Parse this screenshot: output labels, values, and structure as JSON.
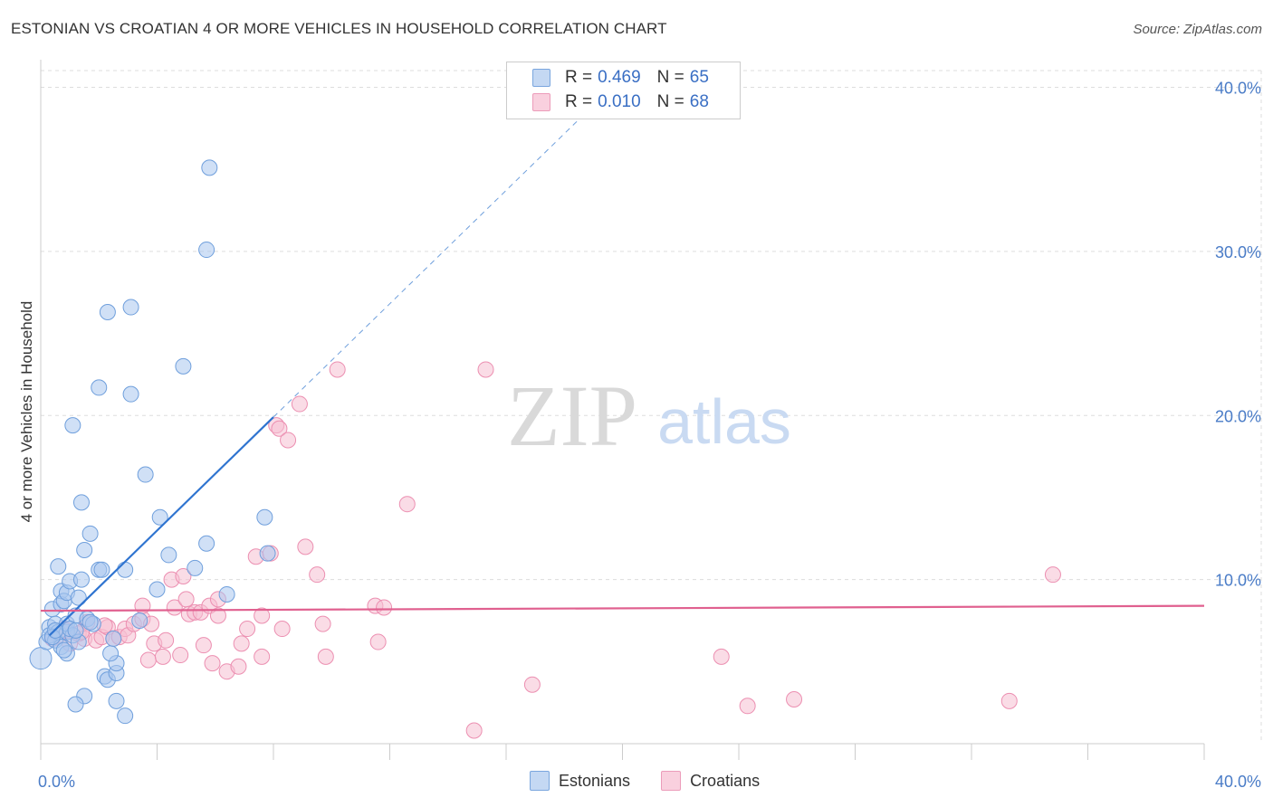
{
  "title": "ESTONIAN VS CROATIAN 4 OR MORE VEHICLES IN HOUSEHOLD CORRELATION CHART",
  "source": "Source: ZipAtlas.com",
  "watermark": {
    "zip": "ZIP",
    "atlas": "atlas"
  },
  "colors": {
    "estonian_fill": "#a9c6ee",
    "estonian_stroke": "#6f9fdc",
    "estonian_line": "#2f74d0",
    "croatian_fill": "#f6bfd2",
    "croatian_stroke": "#ec8fb1",
    "croatian_line": "#e0608f",
    "axis_label": "#4a7cc7",
    "grid": "#dddddd"
  },
  "legend": {
    "r_label": "R =",
    "n_label": "N =",
    "estonians": {
      "r": "0.469",
      "n": "65"
    },
    "croatians": {
      "r": "0.010",
      "n": "68"
    }
  },
  "bottom_legend": {
    "estonians": "Estonians",
    "croatians": "Croatians"
  },
  "chart_data": {
    "type": "scatter",
    "title": "ESTONIAN VS CROATIAN 4 OR MORE VEHICLES IN HOUSEHOLD CORRELATION CHART",
    "xlabel": "",
    "ylabel": "4 or more Vehicles in Household",
    "xlim": [
      0,
      40
    ],
    "ylim": [
      0,
      40
    ],
    "x_tick_labels": [
      "0.0%",
      "40.0%"
    ],
    "y_tick_labels": [
      "10.0%",
      "20.0%",
      "30.0%",
      "40.0%"
    ],
    "y_ticks": [
      10,
      20,
      30,
      40
    ],
    "series": [
      {
        "name": "Estonians",
        "r": 0.469,
        "n": 65,
        "trend": {
          "x0": 0.3,
          "y0": 6.6,
          "x1": 8.0,
          "y1": 19.9,
          "dash_to_x": 19.2
        },
        "points": [
          [
            0.0,
            5.2
          ],
          [
            0.2,
            6.2
          ],
          [
            0.3,
            7.1
          ],
          [
            0.3,
            6.6
          ],
          [
            0.4,
            8.2
          ],
          [
            0.5,
            6.3
          ],
          [
            0.5,
            7.3
          ],
          [
            0.6,
            6.8
          ],
          [
            0.7,
            5.9
          ],
          [
            0.6,
            10.8
          ],
          [
            0.7,
            8.5
          ],
          [
            0.7,
            9.3
          ],
          [
            0.8,
            8.7
          ],
          [
            0.9,
            6.8
          ],
          [
            0.9,
            9.2
          ],
          [
            0.9,
            7.3
          ],
          [
            0.9,
            5.5
          ],
          [
            1.0,
            9.9
          ],
          [
            1.1,
            6.6
          ],
          [
            1.2,
            7.8
          ],
          [
            1.3,
            6.2
          ],
          [
            1.3,
            8.9
          ],
          [
            1.4,
            10.0
          ],
          [
            1.5,
            11.8
          ],
          [
            1.6,
            7.6
          ],
          [
            1.7,
            12.8
          ],
          [
            1.5,
            2.9
          ],
          [
            1.2,
            2.4
          ],
          [
            1.1,
            19.4
          ],
          [
            1.4,
            14.7
          ],
          [
            2.0,
            21.7
          ],
          [
            2.3,
            26.3
          ],
          [
            3.1,
            26.6
          ],
          [
            3.1,
            21.3
          ],
          [
            3.6,
            16.4
          ],
          [
            4.1,
            13.8
          ],
          [
            4.4,
            11.5
          ],
          [
            4.9,
            23.0
          ],
          [
            5.3,
            10.7
          ],
          [
            5.7,
            12.2
          ],
          [
            5.7,
            30.1
          ],
          [
            5.8,
            35.1
          ],
          [
            6.4,
            9.1
          ],
          [
            7.7,
            13.8
          ],
          [
            7.8,
            11.6
          ],
          [
            2.0,
            10.6
          ],
          [
            2.9,
            10.6
          ],
          [
            2.1,
            10.6
          ],
          [
            2.2,
            4.1
          ],
          [
            2.3,
            3.9
          ],
          [
            2.6,
            4.3
          ],
          [
            2.6,
            4.9
          ],
          [
            2.6,
            2.6
          ],
          [
            2.9,
            1.7
          ],
          [
            4.0,
            9.4
          ],
          [
            1.8,
            7.3
          ],
          [
            1.0,
            7.0
          ],
          [
            1.2,
            6.9
          ],
          [
            0.4,
            6.5
          ],
          [
            0.5,
            6.9
          ],
          [
            1.7,
            7.4
          ],
          [
            2.4,
            5.5
          ],
          [
            2.5,
            6.4
          ],
          [
            3.4,
            7.5
          ],
          [
            0.8,
            5.7
          ]
        ]
      },
      {
        "name": "Croatians",
        "r": 0.01,
        "n": 68,
        "trend": {
          "x0": 0.0,
          "y0": 8.1,
          "x1": 40.0,
          "y1": 8.4
        },
        "points": [
          [
            0.4,
            6.4
          ],
          [
            0.6,
            6.6
          ],
          [
            0.8,
            7.0
          ],
          [
            1.0,
            6.1
          ],
          [
            1.3,
            6.7
          ],
          [
            1.5,
            6.4
          ],
          [
            1.6,
            7.4
          ],
          [
            1.9,
            6.3
          ],
          [
            2.1,
            6.5
          ],
          [
            2.3,
            7.1
          ],
          [
            2.5,
            6.4
          ],
          [
            2.7,
            6.5
          ],
          [
            2.9,
            7.0
          ],
          [
            3.0,
            6.6
          ],
          [
            3.2,
            7.3
          ],
          [
            3.5,
            7.6
          ],
          [
            3.5,
            8.4
          ],
          [
            3.7,
            5.1
          ],
          [
            3.8,
            7.3
          ],
          [
            3.9,
            6.1
          ],
          [
            4.2,
            5.3
          ],
          [
            4.3,
            6.3
          ],
          [
            4.5,
            10.0
          ],
          [
            4.6,
            8.3
          ],
          [
            4.8,
            5.4
          ],
          [
            4.9,
            10.2
          ],
          [
            5.0,
            8.8
          ],
          [
            5.1,
            7.9
          ],
          [
            5.3,
            8.0
          ],
          [
            5.5,
            8.0
          ],
          [
            5.6,
            6.0
          ],
          [
            5.8,
            8.4
          ],
          [
            5.9,
            4.9
          ],
          [
            6.1,
            7.8
          ],
          [
            6.1,
            8.8
          ],
          [
            6.4,
            4.4
          ],
          [
            6.8,
            4.7
          ],
          [
            6.9,
            6.1
          ],
          [
            7.1,
            7.0
          ],
          [
            7.4,
            11.4
          ],
          [
            7.6,
            5.3
          ],
          [
            7.6,
            7.8
          ],
          [
            7.9,
            11.6
          ],
          [
            8.1,
            19.4
          ],
          [
            8.2,
            19.2
          ],
          [
            8.3,
            7.0
          ],
          [
            8.5,
            18.5
          ],
          [
            8.9,
            20.7
          ],
          [
            9.1,
            12.0
          ],
          [
            9.5,
            10.3
          ],
          [
            9.8,
            5.3
          ],
          [
            9.7,
            7.3
          ],
          [
            10.2,
            22.8
          ],
          [
            11.5,
            8.4
          ],
          [
            11.6,
            6.2
          ],
          [
            11.8,
            8.3
          ],
          [
            12.6,
            14.6
          ],
          [
            14.9,
            0.8
          ],
          [
            15.3,
            22.8
          ],
          [
            16.9,
            3.6
          ],
          [
            23.4,
            5.3
          ],
          [
            24.3,
            2.3
          ],
          [
            25.9,
            2.7
          ],
          [
            33.3,
            2.6
          ],
          [
            34.8,
            10.3
          ],
          [
            1.4,
            6.8
          ],
          [
            2.2,
            7.2
          ],
          [
            0.9,
            6.9
          ]
        ]
      }
    ]
  }
}
